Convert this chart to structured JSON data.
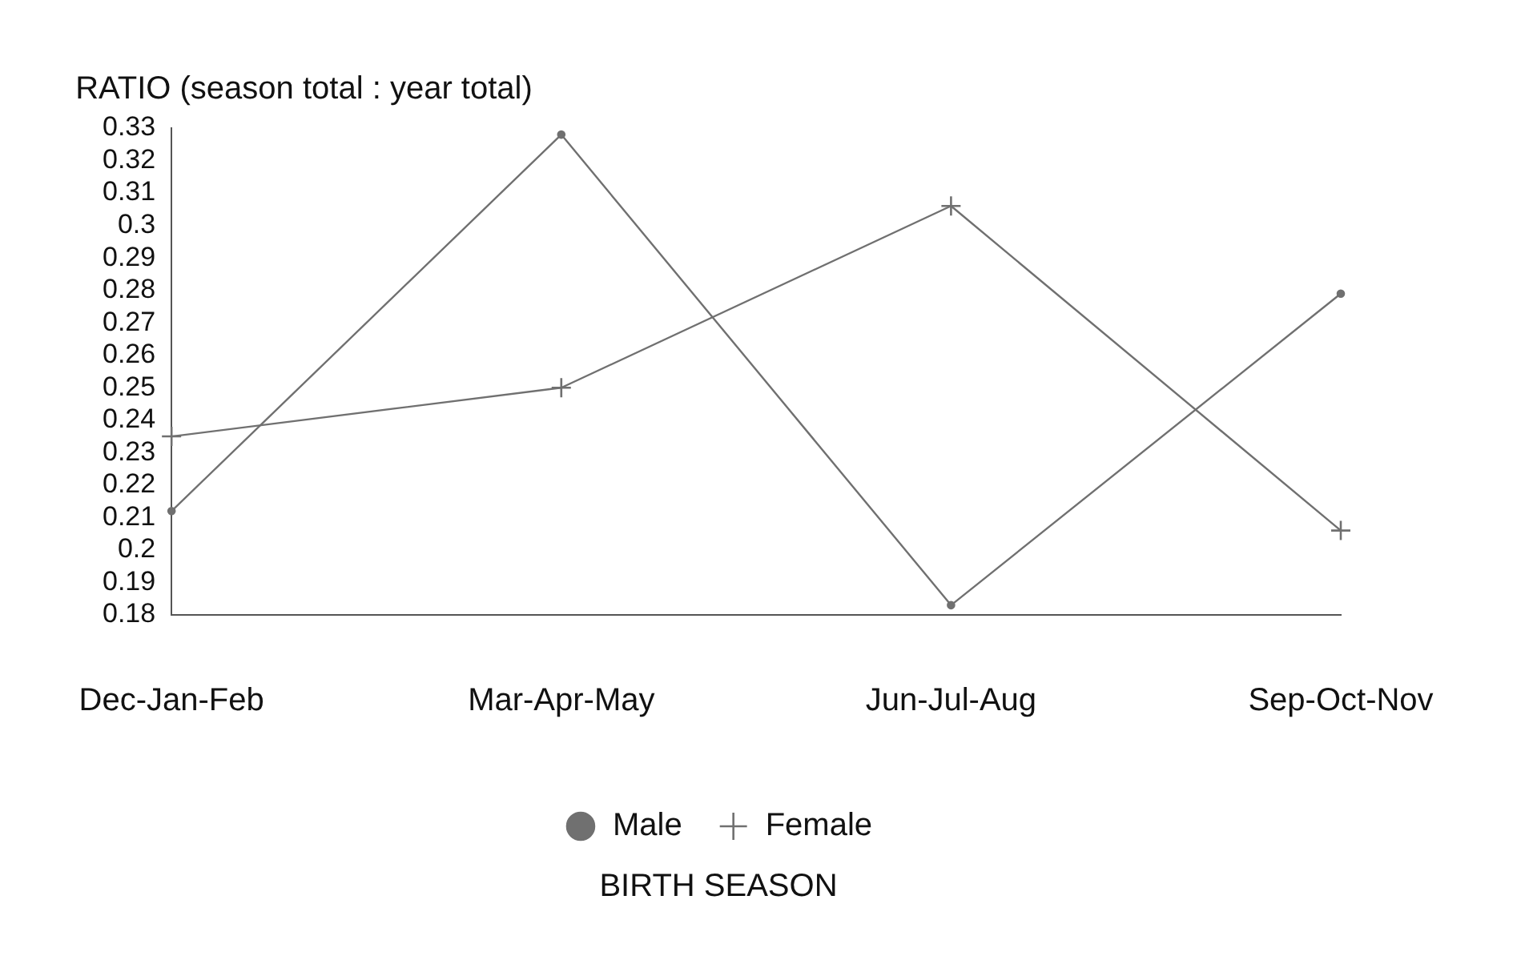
{
  "chart_data": {
    "type": "line",
    "ylabel": "RATIO (season total : year total)",
    "xlabel": "BIRTH SEASON",
    "categories": [
      "Dec-Jan-Feb",
      "Mar-Apr-May",
      "Jun-Jul-Aug",
      "Sep-Oct-Nov"
    ],
    "series": [
      {
        "name": "Male",
        "color": "#707070",
        "marker": "circle",
        "values": [
          0.212,
          0.328,
          0.183,
          0.279
        ]
      },
      {
        "name": "Female",
        "color": "#707070",
        "marker": "cross",
        "values": [
          0.235,
          0.25,
          0.306,
          0.206
        ]
      }
    ],
    "ylim": [
      0.18,
      0.33
    ],
    "yticks": [
      0.18,
      0.19,
      0.2,
      0.21,
      0.22,
      0.23,
      0.24,
      0.25,
      0.26,
      0.27,
      0.28,
      0.29,
      0.3,
      0.31,
      0.32,
      0.33
    ],
    "grid": false,
    "legend": "bottom",
    "line_style": "solid"
  }
}
